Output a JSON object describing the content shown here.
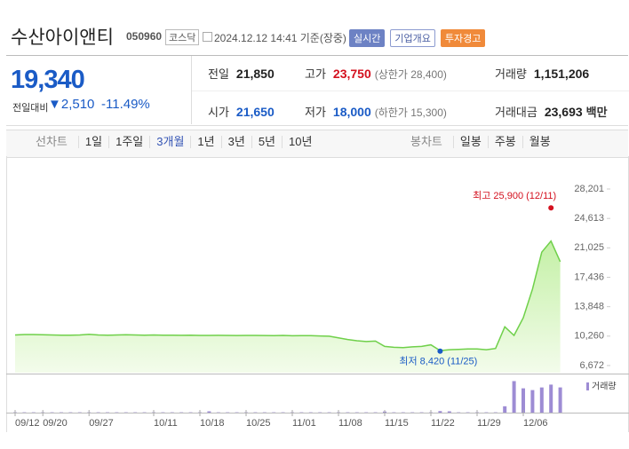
{
  "header": {
    "title": "수산아이앤티",
    "code": "050960",
    "market": "코스닥",
    "timestamp": "2024.12.12 14:41 기준(장중)",
    "buttons": [
      {
        "label": "실시간",
        "style": "solid-blue"
      },
      {
        "label": "기업개요",
        "style": "outline"
      },
      {
        "label": "투자경고",
        "style": "solid-orange"
      }
    ]
  },
  "quote": {
    "price": "19,340",
    "change_label": "전일대비",
    "change": "▼2,510",
    "change_rate": "-11.49%",
    "stats": [
      {
        "label": "전일",
        "value": "21,850",
        "tone": "neutral"
      },
      {
        "label": "고가",
        "value": "23,750",
        "note": "(상한가 28,400)",
        "tone": "up"
      },
      {
        "label": "거래량",
        "value": "1,151,206",
        "tone": "neutral"
      },
      {
        "label": "시가",
        "value": "21,650",
        "tone": "down"
      },
      {
        "label": "저가",
        "value": "18,000",
        "note": "(하한가 15,300)",
        "tone": "down"
      },
      {
        "label": "거래대금",
        "value": "23,693",
        "unit": "백만",
        "tone": "neutral"
      }
    ]
  },
  "period_tabs": {
    "line_label": "선차트",
    "line_periods": [
      "1일",
      "1주일",
      "3개월",
      "1년",
      "3년",
      "5년",
      "10년"
    ],
    "selected": 2,
    "candle_label": "봉차트",
    "candle_periods": [
      "일봉",
      "주봉",
      "월봉"
    ]
  },
  "chart_data": {
    "type": "area",
    "color": "#6fd04a",
    "categories": [
      "09/12",
      null,
      null,
      "09/20",
      null,
      null,
      null,
      null,
      "09/27",
      null,
      null,
      null,
      null,
      null,
      null,
      "10/11",
      null,
      null,
      null,
      null,
      "10/18",
      null,
      null,
      null,
      null,
      "10/25",
      null,
      null,
      null,
      null,
      "11/01",
      null,
      null,
      null,
      null,
      "11/08",
      null,
      null,
      null,
      null,
      "11/15",
      null,
      null,
      null,
      null,
      "11/22",
      null,
      null,
      null,
      null,
      "11/29",
      null,
      null,
      null,
      null,
      "12/06",
      null,
      null,
      null,
      null
    ],
    "values": [
      10400,
      10450,
      10450,
      10430,
      10400,
      10380,
      10380,
      10400,
      10480,
      10400,
      10380,
      10400,
      10420,
      10400,
      10380,
      10400,
      10380,
      10370,
      10360,
      10380,
      10350,
      10340,
      10360,
      10350,
      10330,
      10340,
      10350,
      10330,
      10320,
      10340,
      10300,
      10320,
      10310,
      10280,
      10250,
      10050,
      9850,
      9700,
      9600,
      9650,
      9000,
      8900,
      8850,
      8950,
      9000,
      9200,
      8500,
      8600,
      8650,
      8700,
      8700,
      8600,
      8750,
      11400,
      10350,
      12500,
      16000,
      20500,
      21850,
      19340
    ],
    "volume": {
      "name": "거래량",
      "color": "#9d8cd4",
      "vlim": [
        0,
        1500000
      ],
      "values": [
        15000,
        15000,
        15000,
        15000,
        15000,
        15000,
        15000,
        15000,
        15000,
        15000,
        15000,
        15000,
        15000,
        15000,
        15000,
        15000,
        15000,
        15000,
        15000,
        15000,
        15000,
        60000,
        15000,
        15000,
        15000,
        15000,
        15000,
        15000,
        15000,
        15000,
        15000,
        15000,
        15000,
        15000,
        15000,
        15000,
        15000,
        15000,
        15000,
        15000,
        50000,
        15000,
        15000,
        15000,
        15000,
        15000,
        70000,
        60000,
        15000,
        15000,
        15000,
        15000,
        15000,
        290000,
        1440000,
        1110000,
        1030000,
        1150000,
        1280000,
        1151206
      ]
    },
    "ylim": [
      5800,
      30150
    ],
    "yticks": [
      {
        "value": 6672,
        "label": "6,672"
      },
      {
        "value": 10260,
        "label": "10,260"
      },
      {
        "value": 13848,
        "label": "13,848"
      },
      {
        "value": 17436,
        "label": "17,436"
      },
      {
        "value": 21025,
        "label": "21,025"
      },
      {
        "value": 24613,
        "label": "24,613"
      },
      {
        "value": 28201,
        "label": "28,201"
      }
    ],
    "grid": false,
    "annotations": [
      {
        "label": "최고 25,900 (12/11)",
        "value": 25900,
        "index": 58,
        "color": "#d4111f"
      },
      {
        "label": "최저 8,420 (11/25)",
        "value": 8420,
        "index": 46,
        "color": "#1a5bc6"
      }
    ]
  }
}
